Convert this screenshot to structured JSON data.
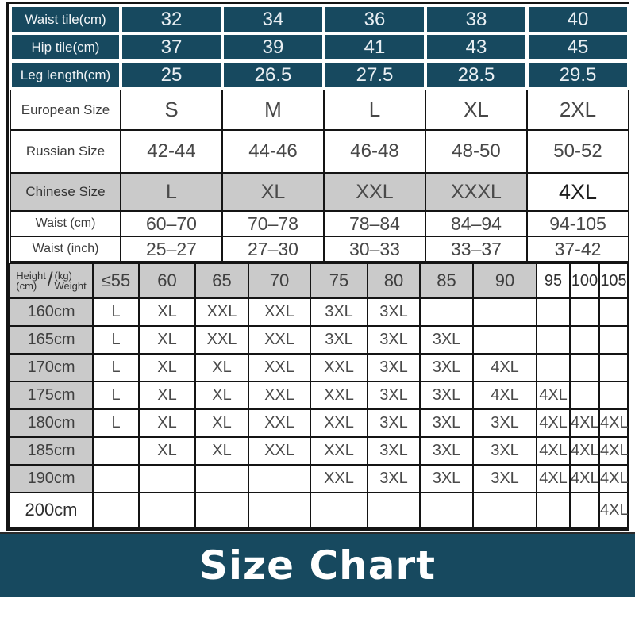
{
  "colors": {
    "teal_header_bg": "#17495F",
    "gray_cell_bg": "#CACACA",
    "banner_bg": "#17495F",
    "banner_text": "#FFFFFF",
    "grid_border": "#141414"
  },
  "banner": {
    "title": "Size Chart"
  },
  "chart_data": [
    {
      "type": "table",
      "title": "Garment measurements and international size equivalents",
      "rows": [
        {
          "label": "Waist tile(cm)",
          "theme": "teal",
          "values": [
            "32",
            "34",
            "36",
            "38",
            "40"
          ]
        },
        {
          "label": "Hip tile(cm)",
          "theme": "teal",
          "values": [
            "37",
            "39",
            "41",
            "43",
            "45"
          ]
        },
        {
          "label": "Leg length(cm)",
          "theme": "teal",
          "values": [
            "25",
            "26.5",
            "27.5",
            "28.5",
            "29.5"
          ]
        },
        {
          "label": "European Size",
          "theme": "white-lg",
          "values": [
            "S",
            "M",
            "L",
            "XL",
            "2XL"
          ]
        },
        {
          "label": "Russian Size",
          "theme": "white-lg",
          "russian": true,
          "values": [
            "42-44",
            "44-46",
            "46-48",
            "48-50",
            "50-52"
          ]
        },
        {
          "label": "Chinese Size",
          "theme": "gray",
          "last_cell_plain": true,
          "values": [
            "L",
            "XL",
            "XXL",
            "XXXL",
            "4XL"
          ]
        },
        {
          "label": "Waist (cm)",
          "theme": "white-sm",
          "values": [
            "60–70",
            "70–78",
            "78–84",
            "84–94",
            "94-105"
          ]
        },
        {
          "label": "Waist (inch)",
          "theme": "white-sm",
          "values": [
            "25–27",
            "27–30",
            "30–33",
            "33–37",
            "37-42"
          ]
        }
      ]
    },
    {
      "type": "table",
      "title": "Recommended size by height and weight",
      "corner": {
        "row_word": "Height",
        "row_unit": "(cm)",
        "divider": "/",
        "col_unit": "(kg)",
        "col_word": "Weight"
      },
      "weight_headers": [
        "≤55",
        "60",
        "65",
        "70",
        "75",
        "80",
        "85",
        "90",
        "95",
        "100",
        "105"
      ],
      "plain_header_from_index": 8,
      "rows": [
        {
          "label": "160cm",
          "cells": [
            "L",
            "XL",
            "XXL",
            "XXL",
            "3XL",
            "3XL",
            "",
            "",
            "",
            "",
            ""
          ]
        },
        {
          "label": "165cm",
          "cells": [
            "L",
            "XL",
            "XXL",
            "XXL",
            "3XL",
            "3XL",
            "3XL",
            "",
            "",
            "",
            ""
          ]
        },
        {
          "label": "170cm",
          "cells": [
            "L",
            "XL",
            "XL",
            "XXL",
            "XXL",
            "3XL",
            "3XL",
            "4XL",
            "",
            "",
            ""
          ]
        },
        {
          "label": "175cm",
          "cells": [
            "L",
            "XL",
            "XL",
            "XXL",
            "XXL",
            "3XL",
            "3XL",
            "4XL",
            "4XL",
            "",
            ""
          ]
        },
        {
          "label": "180cm",
          "cells": [
            "L",
            "XL",
            "XL",
            "XXL",
            "XXL",
            "3XL",
            "3XL",
            "3XL",
            "4XL",
            "4XL",
            "4XL"
          ]
        },
        {
          "label": "185cm",
          "cells": [
            "",
            "XL",
            "XL",
            "XXL",
            "XXL",
            "3XL",
            "3XL",
            "3XL",
            "4XL",
            "4XL",
            "4XL"
          ]
        },
        {
          "label": "190cm",
          "cells": [
            "",
            "",
            "",
            "",
            "XXL",
            "3XL",
            "3XL",
            "3XL",
            "4XL",
            "4XL",
            "4XL"
          ]
        },
        {
          "label": "200cm",
          "label_plain": true,
          "tall": true,
          "cells": [
            "",
            "",
            "",
            "",
            "",
            "",
            "",
            "",
            "",
            "",
            "4XL"
          ]
        }
      ]
    }
  ]
}
